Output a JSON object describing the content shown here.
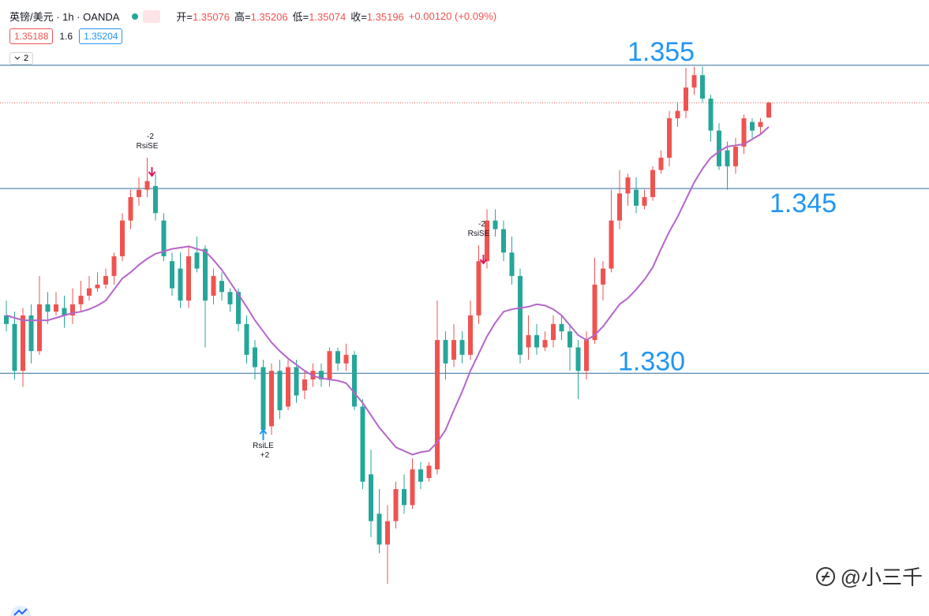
{
  "chart_data": {
    "type": "candlestick",
    "title": "英镑/美元 · 1h · OANDA",
    "ohlc_labels": [
      "开=",
      "高=",
      "低=",
      "收="
    ],
    "change": "+0.00120 (+0.09%)",
    "bid": 1.35188,
    "spread": 1.6,
    "ask": 1.35204,
    "indicator_count": 2,
    "watermark": "@小三千",
    "up_color": "#ef5350",
    "down_color": "#26a69a",
    "ma_color": "#b565c9",
    "level_color": "#2b6f9e",
    "level_label_color": "#2196f3",
    "ylim": [
      1.3103,
      1.3603
    ],
    "levels": [
      1.355,
      1.345,
      {
        "value": 1.33,
        "label": "1.330"
      }
    ],
    "open": [
      1.3347,
      1.334,
      1.3302,
      1.3347,
      1.3318,
      1.3356,
      1.335,
      1.3353,
      1.3347,
      1.3356,
      1.3363,
      1.3369,
      1.3372,
      1.3379,
      1.3395,
      1.3424,
      1.3443,
      1.3449,
      1.3452,
      1.3424,
      1.3391,
      1.3385,
      1.3359,
      1.3398,
      1.3401,
      1.3363,
      1.3375,
      1.3366,
      1.3366,
      1.334,
      1.3321,
      1.3305,
      1.3257,
      1.3302,
      1.3273,
      1.3305,
      1.3286,
      1.3295,
      1.3302,
      1.3295,
      1.3318,
      1.3308,
      1.3315,
      1.3273,
      1.3218,
      1.3186,
      1.3161,
      1.318,
      1.3206,
      1.3193,
      1.3222,
      1.3215,
      1.3222,
      1.3327,
      1.3311,
      1.3327,
      1.3315,
      1.3347,
      1.3391,
      1.3424,
      1.3417,
      1.3398,
      1.3379,
      1.3321,
      1.3331,
      1.3321,
      1.3327,
      1.334,
      1.3334,
      1.3321,
      1.3302,
      1.3327,
      1.3372,
      1.3385,
      1.3424,
      1.3446,
      1.3449,
      1.3436,
      1.3443,
      1.3465,
      1.3475,
      1.3507,
      1.3513,
      1.3532,
      1.3542,
      1.3523,
      1.3497,
      1.3481,
      1.3468,
      1.3484,
      1.3504,
      1.35,
      1.35076
    ],
    "high": [
      1.3359,
      1.335,
      1.3353,
      1.3356,
      1.3379,
      1.3366,
      1.3366,
      1.3363,
      1.3369,
      1.3375,
      1.3379,
      1.3382,
      1.3385,
      1.3398,
      1.343,
      1.3449,
      1.3459,
      1.3475,
      1.3462,
      1.343,
      1.3398,
      1.3398,
      1.3404,
      1.3411,
      1.3404,
      1.3385,
      1.3382,
      1.3369,
      1.3369,
      1.3347,
      1.3327,
      1.3311,
      1.3308,
      1.3311,
      1.3311,
      1.3311,
      1.3302,
      1.3308,
      1.3308,
      1.3321,
      1.3321,
      1.3324,
      1.3318,
      1.3279,
      1.3238,
      1.3206,
      1.3193,
      1.3212,
      1.3218,
      1.3231,
      1.3228,
      1.3228,
      1.3359,
      1.3334,
      1.334,
      1.3334,
      1.3359,
      1.3404,
      1.3433,
      1.3433,
      1.3424,
      1.3411,
      1.3385,
      1.3347,
      1.334,
      1.3334,
      1.3347,
      1.3347,
      1.334,
      1.3327,
      1.3334,
      1.3394,
      1.3391,
      1.3449,
      1.3465,
      1.3462,
      1.3459,
      1.3449,
      1.3468,
      1.3481,
      1.3513,
      1.352,
      1.3548,
      1.3549,
      1.3549,
      1.3526,
      1.3503,
      1.3488,
      1.3491,
      1.351,
      1.3507,
      1.3507,
      1.35206
    ],
    "low": [
      1.3334,
      1.3295,
      1.3289,
      1.3308,
      1.3315,
      1.334,
      1.3347,
      1.3337,
      1.334,
      1.335,
      1.3359,
      1.3366,
      1.3369,
      1.3372,
      1.3391,
      1.3417,
      1.3436,
      1.3443,
      1.3424,
      1.3391,
      1.3363,
      1.3353,
      1.3353,
      1.3382,
      1.3321,
      1.3356,
      1.3359,
      1.335,
      1.3334,
      1.3308,
      1.3295,
      1.3247,
      1.325,
      1.3263,
      1.327,
      1.3276,
      1.3279,
      1.3289,
      1.3289,
      1.3289,
      1.3302,
      1.3302,
      1.327,
      1.3206,
      1.3167,
      1.3154,
      1.3129,
      1.3174,
      1.3186,
      1.319,
      1.3206,
      1.3212,
      1.3218,
      1.3295,
      1.3305,
      1.3308,
      1.3311,
      1.334,
      1.3385,
      1.3411,
      1.3391,
      1.3372,
      1.3308,
      1.3311,
      1.3315,
      1.3318,
      1.3321,
      1.3327,
      1.3302,
      1.3279,
      1.3295,
      1.3324,
      1.3359,
      1.3382,
      1.3417,
      1.3436,
      1.343,
      1.3433,
      1.344,
      1.3462,
      1.3468,
      1.35,
      1.3507,
      1.3526,
      1.352,
      1.3488,
      1.3465,
      1.3449,
      1.3462,
      1.3478,
      1.3491,
      1.3494,
      1.35074
    ],
    "close": [
      1.334,
      1.3302,
      1.3347,
      1.3318,
      1.3356,
      1.335,
      1.3356,
      1.3347,
      1.3356,
      1.3363,
      1.3369,
      1.3372,
      1.3379,
      1.3395,
      1.3424,
      1.3443,
      1.3449,
      1.3456,
      1.343,
      1.3395,
      1.3369,
      1.3359,
      1.3395,
      1.3385,
      1.3359,
      1.3379,
      1.3366,
      1.3356,
      1.334,
      1.3315,
      1.3305,
      1.3254,
      1.3302,
      1.327,
      1.3305,
      1.3282,
      1.3295,
      1.3302,
      1.3295,
      1.3318,
      1.3308,
      1.3315,
      1.3273,
      1.3212,
      1.318,
      1.3161,
      1.318,
      1.3206,
      1.3193,
      1.3222,
      1.3212,
      1.3225,
      1.3327,
      1.3308,
      1.3327,
      1.3315,
      1.3347,
      1.3391,
      1.3424,
      1.3417,
      1.3398,
      1.3379,
      1.3315,
      1.3331,
      1.3321,
      1.3327,
      1.334,
      1.3334,
      1.3321,
      1.3302,
      1.3327,
      1.3372,
      1.3385,
      1.3424,
      1.3446,
      1.3459,
      1.3436,
      1.3443,
      1.3465,
      1.3475,
      1.3507,
      1.3513,
      1.3532,
      1.3542,
      1.3523,
      1.3497,
      1.3468,
      1.3468,
      1.3484,
      1.3507,
      1.3497,
      1.3504,
      1.35196
    ],
    "ma": [
      1.3347,
      1.3345,
      1.3343,
      1.3343,
      1.3343,
      1.3343,
      1.3345,
      1.3347,
      1.3349,
      1.335,
      1.3352,
      1.3355,
      1.3359,
      1.3368,
      1.3377,
      1.3382,
      1.3388,
      1.3393,
      1.3397,
      1.3399,
      1.3401,
      1.3402,
      1.3403,
      1.3401,
      1.3399,
      1.3392,
      1.3384,
      1.3374,
      1.3364,
      1.3354,
      1.3343,
      1.3334,
      1.3325,
      1.3318,
      1.3312,
      1.3307,
      1.3302,
      1.3298,
      1.3296,
      1.3295,
      1.3294,
      1.3292,
      1.3284,
      1.3276,
      1.3266,
      1.3256,
      1.3248,
      1.324,
      1.3237,
      1.3234,
      1.3236,
      1.3237,
      1.3244,
      1.3254,
      1.327,
      1.3285,
      1.3302,
      1.3316,
      1.333,
      1.3341,
      1.335,
      1.3352,
      1.3353,
      1.3354,
      1.3356,
      1.3355,
      1.3352,
      1.3347,
      1.3339,
      1.3331,
      1.3327,
      1.3331,
      1.3338,
      1.3347,
      1.3356,
      1.3361,
      1.3368,
      1.3376,
      1.3386,
      1.3401,
      1.3415,
      1.3427,
      1.3441,
      1.3455,
      1.3466,
      1.3475,
      1.348,
      1.3484,
      1.3485,
      1.3486,
      1.349,
      1.3494,
      1.35
    ],
    "signals": [
      null,
      null,
      null,
      null,
      null,
      null,
      null,
      null,
      null,
      null,
      null,
      null,
      null,
      null,
      null,
      null,
      null,
      {
        "name": "RsiSE",
        "qty": "-2"
      },
      null,
      null,
      null,
      null,
      null,
      null,
      null,
      null,
      null,
      null,
      null,
      null,
      null,
      {
        "name": "RsiLE",
        "qty": "+2"
      },
      null,
      null,
      null,
      null,
      null,
      null,
      null,
      null,
      null,
      null,
      null,
      null,
      null,
      null,
      null,
      null,
      null,
      null,
      null,
      null,
      null,
      null,
      null,
      null,
      null,
      {
        "name": "RsiSE",
        "qty": "-2"
      },
      null,
      null,
      null,
      null,
      null,
      null,
      null,
      null,
      null,
      null,
      null,
      null,
      null,
      null,
      null,
      null,
      null,
      null,
      null,
      null,
      null,
      null,
      null,
      null,
      null,
      null,
      null,
      null,
      null,
      null,
      null,
      null,
      null,
      null,
      null
    ]
  }
}
